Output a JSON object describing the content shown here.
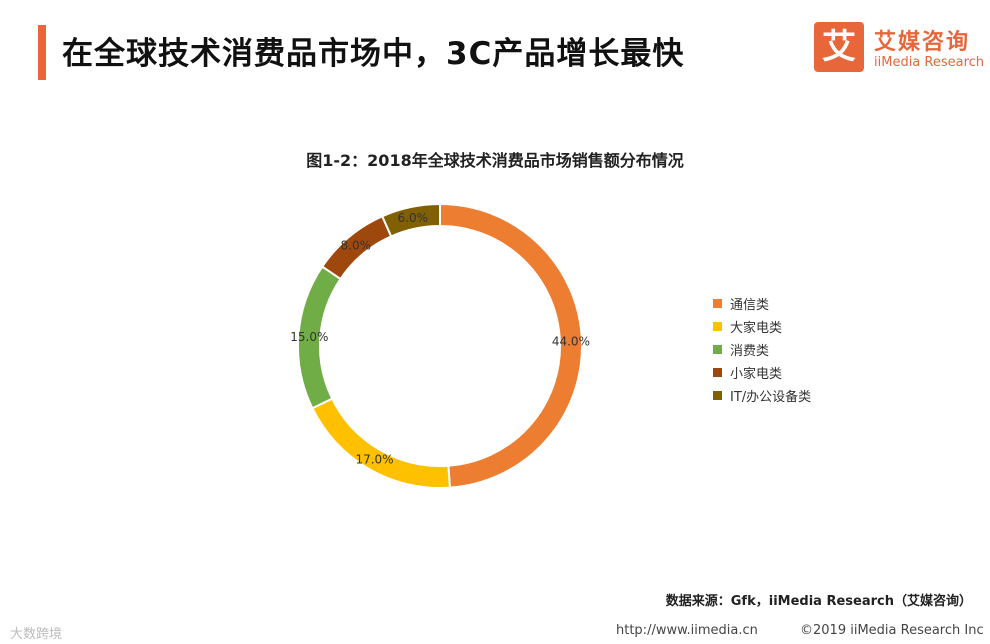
{
  "header": {
    "title": "在全球技术消费品市场中，3C产品增长最快"
  },
  "logo": {
    "icon_char": "艾",
    "name_cn": "艾媒咨询",
    "name_en": "iiMedia Research",
    "color": "#e8673a"
  },
  "chart_data": {
    "type": "pie",
    "title": "图1-2：2018年全球技术消费品市场销售额分布情况",
    "style": "donut",
    "legend_position": "right",
    "slices": [
      {
        "label": "通信类",
        "value": 44.0,
        "display": "44.0%",
        "color": "#ed7d31"
      },
      {
        "label": "大家电类",
        "value": 17.0,
        "display": "17.0%",
        "color": "#ffc000"
      },
      {
        "label": "消费类",
        "value": 15.0,
        "display": "15.0%",
        "color": "#70ad47"
      },
      {
        "label": "小家电类",
        "value": 8.0,
        "display": "8.0%",
        "color": "#9e480e"
      },
      {
        "label": "IT/办公设备类",
        "value": 6.0,
        "display": "6.0%",
        "color": "#806000"
      }
    ]
  },
  "source": "数据来源：Gfk，iiMedia Research（艾媒咨询）",
  "footer": {
    "left": "大数跨境",
    "link": "http://www.iimedia.cn",
    "copyright": "©2019  iiMedia Research  Inc"
  }
}
